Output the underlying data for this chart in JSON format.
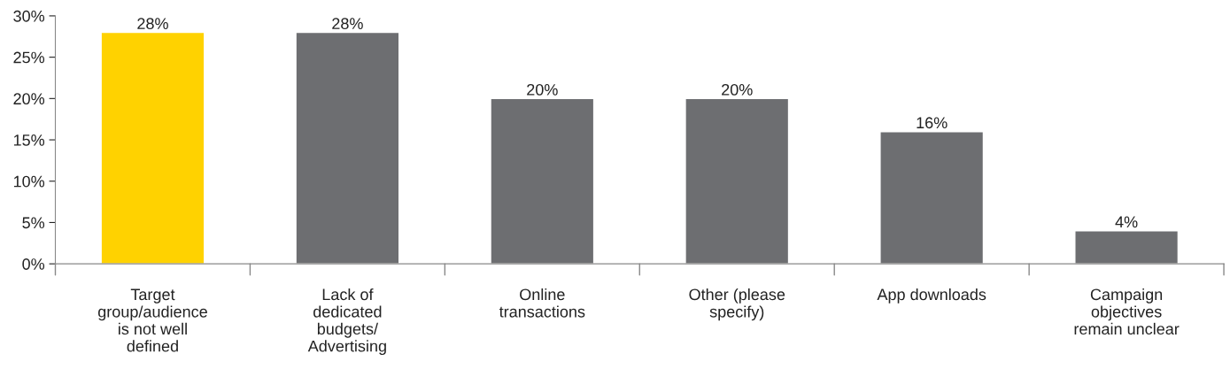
{
  "chart_data": {
    "type": "bar",
    "categories": [
      "Target\ngroup/audience\nis not well\ndefined",
      "Lack of\ndedicated\nbudgets/\nAdvertising",
      "Online\ntransactions",
      "Other (please\nspecify)",
      "App downloads",
      "Campaign\nobjectives\nremain unclear"
    ],
    "values": [
      28,
      28,
      20,
      20,
      16,
      4
    ],
    "colors": [
      "#ffd200",
      "#6d6e71",
      "#6d6e71",
      "#6d6e71",
      "#6d6e71",
      "#6d6e71"
    ],
    "value_labels": [
      "28%",
      "28%",
      "20%",
      "20%",
      "16%",
      "4%"
    ],
    "ylim": [
      0,
      30
    ],
    "yticks": [
      {
        "value": 0,
        "label": "0%"
      },
      {
        "value": 5,
        "label": "5%"
      },
      {
        "value": 10,
        "label": "10%"
      },
      {
        "value": 15,
        "label": "15%"
      },
      {
        "value": 20,
        "label": "20%"
      },
      {
        "value": 25,
        "label": "25%"
      },
      {
        "value": 30,
        "label": "30%"
      }
    ],
    "grid": false,
    "legend": false
  }
}
